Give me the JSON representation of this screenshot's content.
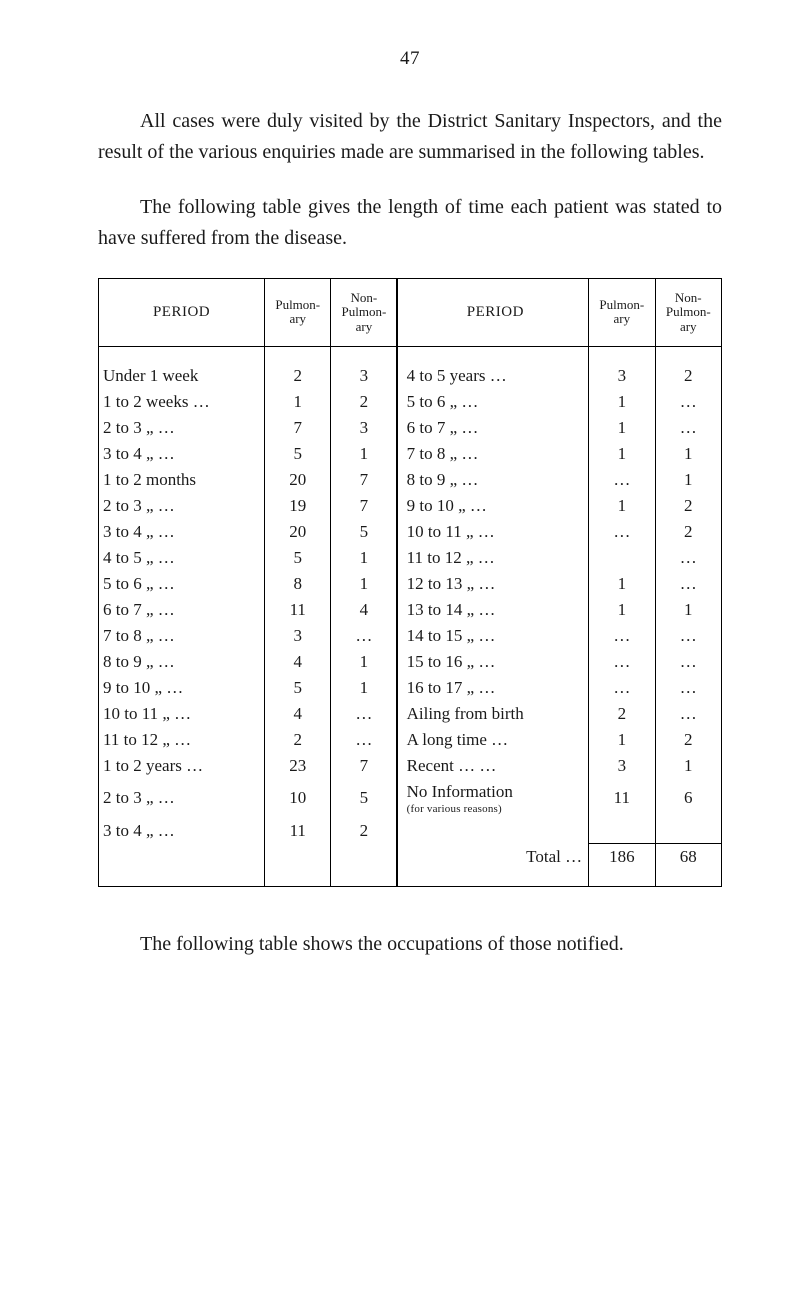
{
  "page_number": "47",
  "para1": "All cases were duly visited by the District Sanitary Inspectors, and the result of the various enquiries made are summarised in the following tables.",
  "para2": "The following table gives the length of time each patient was stated to have suffered from the disease.",
  "closing": "The following table shows the occupations of those notified.",
  "table": {
    "headers": {
      "period": "PERIOD",
      "pulmon": "Pulmon-\nary",
      "nonpulmon": "Non-\nPulmon-\nary"
    },
    "left": [
      {
        "label": "Under 1 week",
        "pulm": "2",
        "nonp": "3"
      },
      {
        "label": "1 to 2 weeks …",
        "pulm": "1",
        "nonp": "2"
      },
      {
        "label": "2 to 3    „    …",
        "pulm": "7",
        "nonp": "3"
      },
      {
        "label": "3 to 4    „    …",
        "pulm": "5",
        "nonp": "1"
      },
      {
        "label": "1 to 2 months",
        "pulm": "20",
        "nonp": "7"
      },
      {
        "label": "2 to 3    „    …",
        "pulm": "19",
        "nonp": "7"
      },
      {
        "label": "3 to 4    „    …",
        "pulm": "20",
        "nonp": "5"
      },
      {
        "label": "4 to 5    „    …",
        "pulm": "5",
        "nonp": "1"
      },
      {
        "label": "5 to 6    „    …",
        "pulm": "8",
        "nonp": "1"
      },
      {
        "label": "6 to 7    „    …",
        "pulm": "11",
        "nonp": "4"
      },
      {
        "label": "7 to 8    „    …",
        "pulm": "3",
        "nonp": "…"
      },
      {
        "label": "8 to 9    „    …",
        "pulm": "4",
        "nonp": "1"
      },
      {
        "label": "9 to 10   „    …",
        "pulm": "5",
        "nonp": "1"
      },
      {
        "label": "10 to 11  „    …",
        "pulm": "4",
        "nonp": "…"
      },
      {
        "label": "11 to 12  „    …",
        "pulm": "2",
        "nonp": "…"
      },
      {
        "label": "1 to 2 years …",
        "pulm": "23",
        "nonp": "7"
      },
      {
        "label": "2 to 3    „    …",
        "pulm": "10",
        "nonp": "5"
      },
      {
        "label": "3 to 4    „    …",
        "pulm": "11",
        "nonp": "2"
      }
    ],
    "right": [
      {
        "label": "4 to 5 years   …",
        "pulm": "3",
        "nonp": "2"
      },
      {
        "label": "5 to 6    „    …",
        "pulm": "1",
        "nonp": "…"
      },
      {
        "label": "6 to 7    „    …",
        "pulm": "1",
        "nonp": "…"
      },
      {
        "label": "7 to 8    „    …",
        "pulm": "1",
        "nonp": "1"
      },
      {
        "label": "8 to 9    „    …",
        "pulm": "…",
        "nonp": "1"
      },
      {
        "label": "9 to 10   „    …",
        "pulm": "1",
        "nonp": "2"
      },
      {
        "label": "10 to 11  „    …",
        "pulm": "…",
        "nonp": "2"
      },
      {
        "label": "11 to 12  „    …",
        "pulm": "",
        "nonp": "…"
      },
      {
        "label": "12 to 13  „    …",
        "pulm": "1",
        "nonp": "…"
      },
      {
        "label": "13 to 14  „    …",
        "pulm": "1",
        "nonp": "1"
      },
      {
        "label": "14 to 15  „    …",
        "pulm": "…",
        "nonp": "…"
      },
      {
        "label": "15 to 16  „    …",
        "pulm": "…",
        "nonp": "…"
      },
      {
        "label": "16 to 17  „    …",
        "pulm": "…",
        "nonp": "…"
      },
      {
        "label": "Ailing from birth",
        "pulm": "2",
        "nonp": "…"
      },
      {
        "label": "A long time   …",
        "pulm": "1",
        "nonp": "2"
      },
      {
        "label": "Recent  …     …",
        "pulm": "3",
        "nonp": "1"
      },
      {
        "label": "No Information",
        "pulm": "11",
        "nonp": "6",
        "note": "(for various reasons)"
      }
    ],
    "total_label": "Total …",
    "total_pulm": "186",
    "total_nonp": "68"
  },
  "colors": {
    "text": "#1a1a1a",
    "border": "#000000",
    "background": "#ffffff"
  },
  "fontsizes": {
    "body": 20,
    "table_cell": 17,
    "header_small": 13
  }
}
